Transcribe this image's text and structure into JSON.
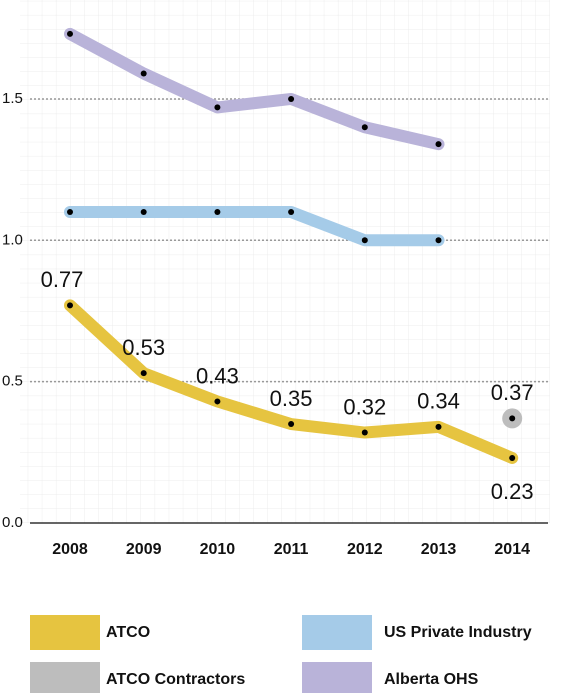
{
  "chart_data": {
    "type": "line",
    "categories": [
      "2008",
      "2009",
      "2010",
      "2011",
      "2012",
      "2013",
      "2014"
    ],
    "series": [
      {
        "name": "ATCO",
        "color": "#e6c440",
        "values": [
          0.77,
          0.53,
          0.43,
          0.35,
          0.32,
          0.34,
          0.23
        ]
      },
      {
        "name": "US Private Industry",
        "color": "#a5cbe8",
        "values": [
          1.1,
          1.1,
          1.1,
          1.1,
          1.0,
          1.0,
          null
        ]
      },
      {
        "name": "ATCO Contractors",
        "color": "#bdbdbd",
        "values": [
          null,
          null,
          null,
          null,
          null,
          null,
          0.37
        ]
      },
      {
        "name": "Alberta OHS",
        "color": "#b9b3d9",
        "values": [
          1.73,
          1.59,
          1.47,
          1.5,
          1.4,
          1.34,
          null
        ]
      }
    ],
    "ylim": [
      0,
      1.85
    ],
    "yticks": [
      {
        "value": 0,
        "label": "0.0"
      },
      0.5,
      {
        "value": 1,
        "label": "1.0"
      },
      1.5
    ],
    "grid": true
  }
}
